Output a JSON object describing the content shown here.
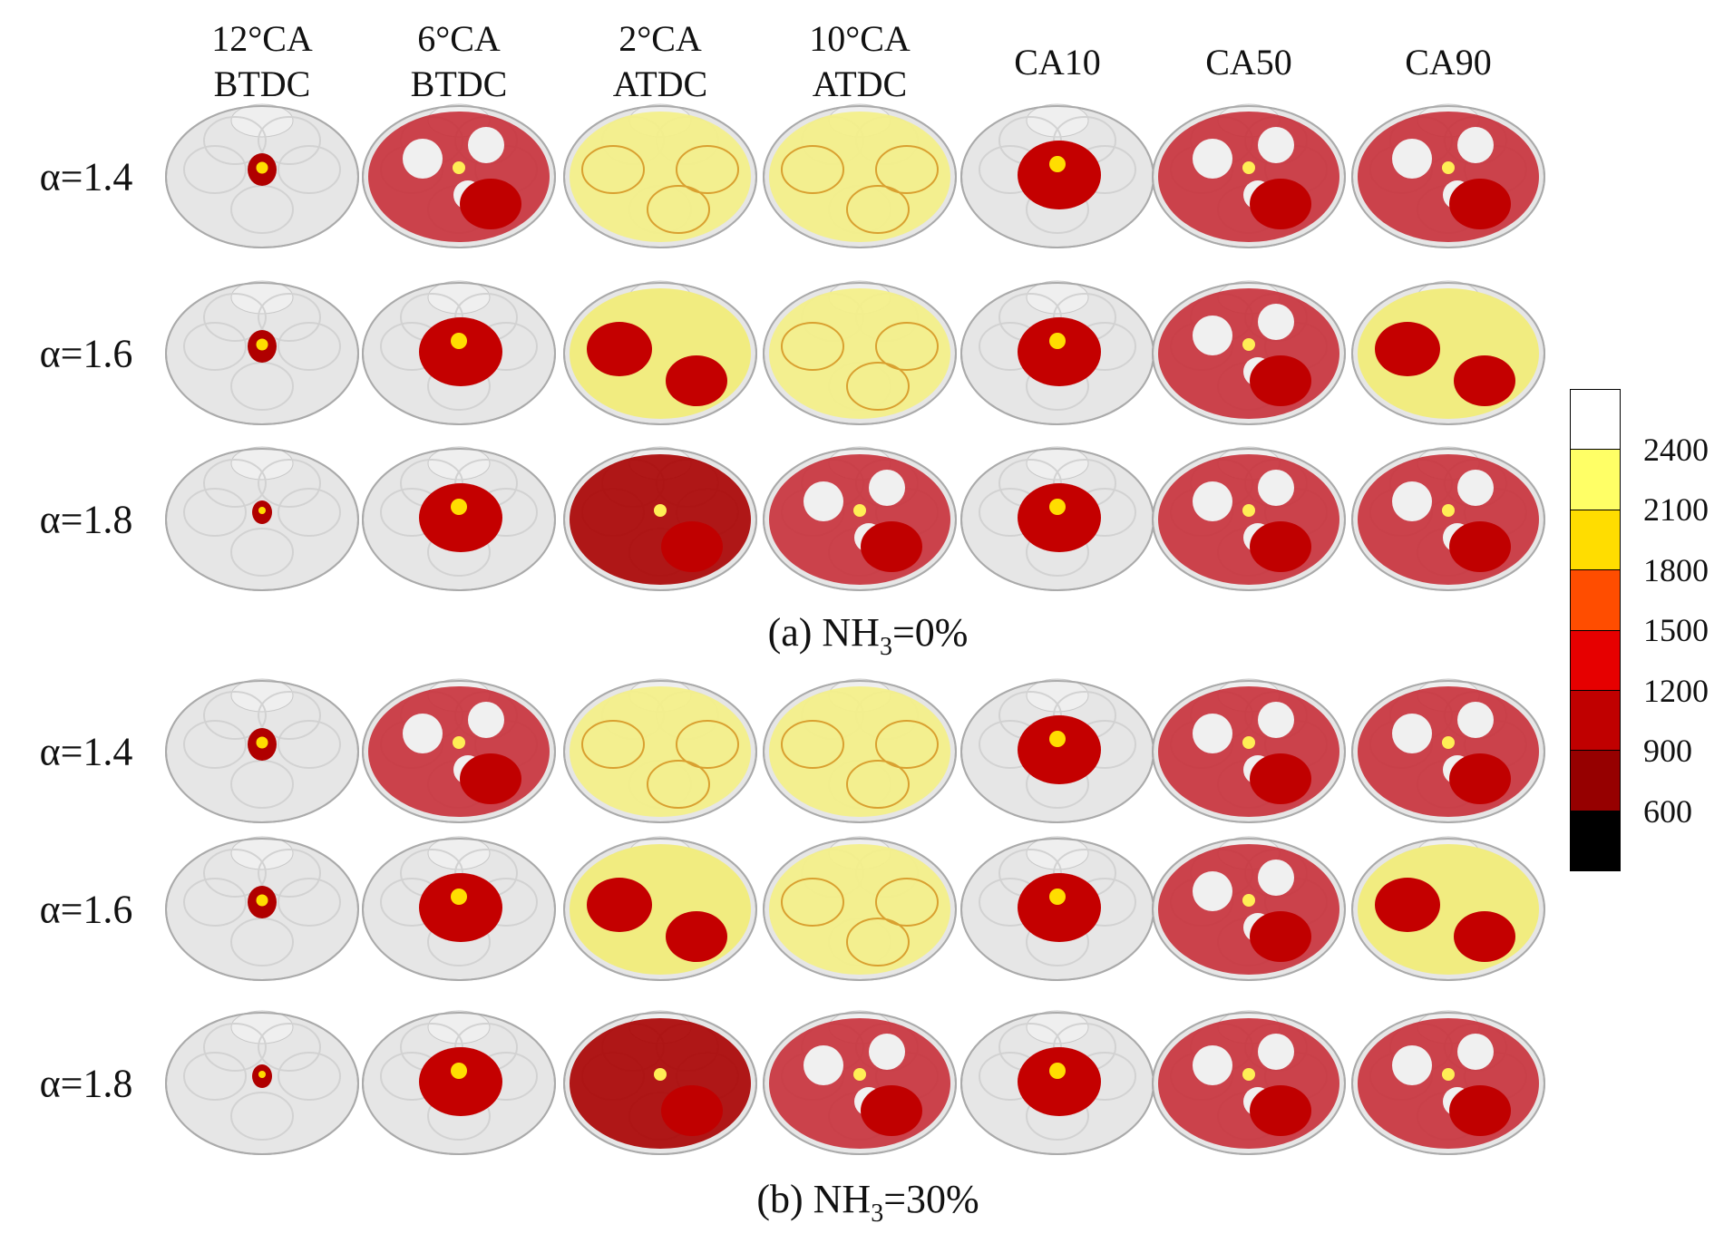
{
  "columns": [
    {
      "line1": "12°CA",
      "line2": "BTDC"
    },
    {
      "line1": "6°CA",
      "line2": "BTDC"
    },
    {
      "line1": "2°CA",
      "line2": "ATDC"
    },
    {
      "line1": "10°CA",
      "line2": "ATDC"
    },
    {
      "line1": "CA10",
      "line2": ""
    },
    {
      "line1": "CA50",
      "line2": ""
    },
    {
      "line1": "CA90",
      "line2": ""
    }
  ],
  "groups": [
    {
      "caption_prefix": "(a) NH",
      "caption_sub": "3",
      "caption_suffix": "=0%",
      "rows": [
        "α=1.4",
        "α=1.6",
        "α=1.8"
      ]
    },
    {
      "caption_prefix": "(b) NH",
      "caption_sub": "3",
      "caption_suffix": "=30%",
      "rows": [
        "α=1.4",
        "α=1.6",
        "α=1.8"
      ]
    }
  ],
  "colorbar": {
    "ticks": [
      "2400",
      "2100",
      "1800",
      "1500",
      "1200",
      "900",
      "600"
    ],
    "colors": [
      "#ffffff",
      "#ffff66",
      "#ffdd00",
      "#ff4d00",
      "#e60000",
      "#c00000",
      "#960000",
      "#000000"
    ]
  }
}
